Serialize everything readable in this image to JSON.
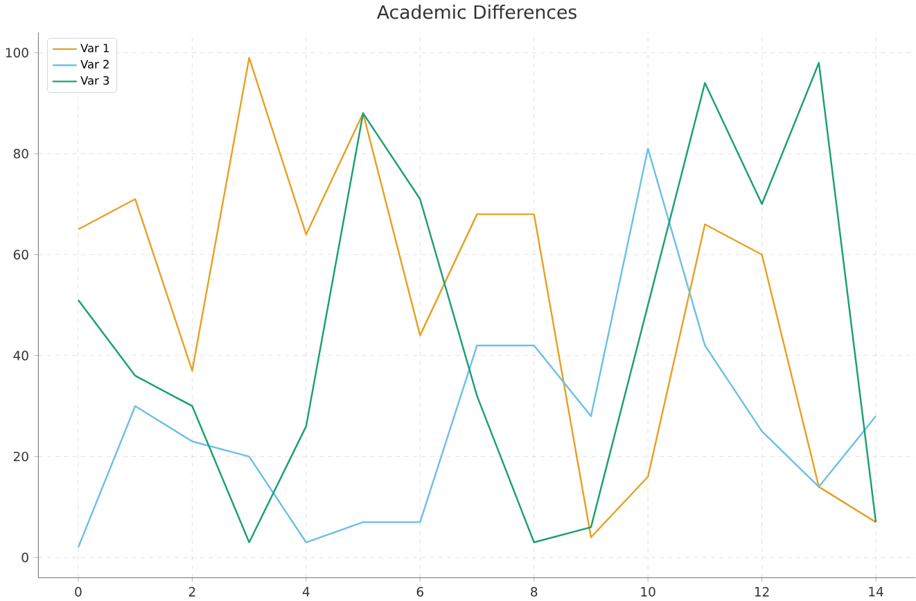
{
  "chart_data": {
    "type": "line",
    "title": "Academic Differences",
    "x": [
      0,
      1,
      2,
      3,
      4,
      5,
      6,
      7,
      8,
      9,
      10,
      11,
      12,
      13,
      14
    ],
    "xlim": [
      -0.7,
      14.7
    ],
    "xticks": [
      0,
      2,
      4,
      6,
      8,
      10,
      12,
      14
    ],
    "series": [
      {
        "name": "Var 1",
        "color": "#e6a124",
        "values": [
          65,
          71,
          37,
          99,
          64,
          88,
          44,
          68,
          68,
          4,
          16,
          66,
          60,
          14,
          7
        ]
      },
      {
        "name": "Var 2",
        "color": "#6cc0e6",
        "values": [
          2,
          30,
          23,
          20,
          3,
          7,
          7,
          42,
          42,
          28,
          81,
          42,
          25,
          14,
          28
        ]
      },
      {
        "name": "Var 3",
        "color": "#1b9e77",
        "values": [
          51,
          36,
          30,
          3,
          26,
          88,
          71,
          32,
          3,
          6,
          50,
          94,
          70,
          98,
          7
        ]
      }
    ],
    "ylim": [
      -4,
      104
    ],
    "yticks": [
      0,
      20,
      40,
      60,
      80,
      100
    ],
    "grid": true,
    "legend": "top left",
    "marker": "none",
    "line_style": "solid"
  }
}
